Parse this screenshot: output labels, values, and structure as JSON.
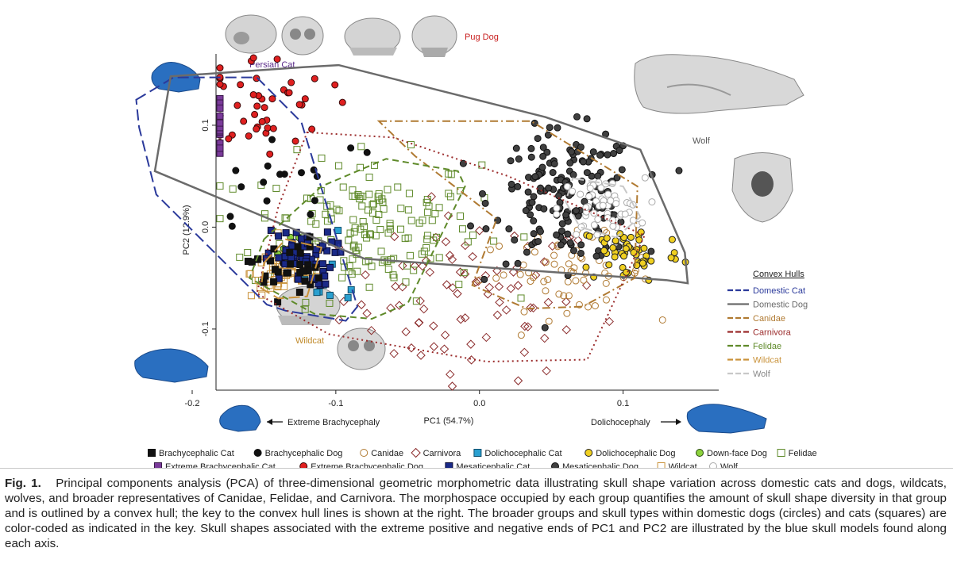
{
  "chart_data": {
    "type": "scatter",
    "xlabel": "PC1 (54.7%)",
    "ylabel": "PC2 (12.9%)",
    "xlim": [
      -0.2,
      0.15
    ],
    "ylim": [
      -0.16,
      0.17
    ],
    "x_ticks": [
      -0.2,
      -0.1,
      0.0,
      0.1
    ],
    "x_tick_labels": [
      "-0.2",
      "-0.1",
      "0.0",
      "0.1"
    ],
    "y_ticks": [
      -0.1,
      0.0,
      0.1
    ],
    "y_tick_labels": [
      "-0.1",
      "0.0",
      "0.1"
    ],
    "grid": false,
    "axis_annotations": {
      "left": "Extreme Brachycephaly",
      "right": "Dolichocephaly"
    },
    "skull_labels": {
      "persian_cat": "Persian Cat",
      "pug_dog": "Pug Dog",
      "wolf": "Wolf",
      "wildcat": "Wildcat"
    },
    "hull_legend_title": "Convex Hulls",
    "hulls": [
      {
        "name": "Domestic Cat",
        "color": "#2b3a9b",
        "dash": "long-dash",
        "points": [
          [
            -0.239,
            0.125
          ],
          [
            -0.213,
            0.147
          ],
          [
            -0.155,
            0.147
          ],
          [
            -0.124,
            0.103
          ],
          [
            -0.085,
            -0.078
          ],
          [
            -0.093,
            -0.092
          ],
          [
            -0.135,
            -0.082
          ],
          [
            -0.148,
            -0.076
          ],
          [
            -0.225,
            0.032
          ],
          [
            -0.237,
            0.098
          ]
        ]
      },
      {
        "name": "Domestic Dog",
        "color": "#6b6b6b",
        "dash": "solid",
        "points": [
          [
            -0.215,
            0.148
          ],
          [
            -0.123,
            0.157
          ],
          [
            -0.098,
            0.159
          ],
          [
            0.046,
            0.108
          ],
          [
            0.112,
            0.076
          ],
          [
            0.143,
            -0.025
          ],
          [
            0.145,
            -0.055
          ],
          [
            0.13,
            -0.052
          ],
          [
            -0.08,
            -0.031
          ],
          [
            -0.226,
            0.055
          ]
        ]
      },
      {
        "name": "Canidae",
        "color": "#b07a32",
        "dash": "dash-dot",
        "points": [
          [
            -0.07,
            0.104
          ],
          [
            0.036,
            0.104
          ],
          [
            0.11,
            0.04
          ],
          [
            0.108,
            -0.05
          ],
          [
            0.072,
            -0.078
          ],
          [
            0.033,
            -0.08
          ],
          [
            -0.005,
            -0.057
          ],
          [
            0.012,
            0.008
          ],
          [
            -0.045,
            0.07
          ]
        ]
      },
      {
        "name": "Carnivora",
        "color": "#9b2b2b",
        "dash": "dotted",
        "points": [
          [
            -0.12,
            0.093
          ],
          [
            -0.06,
            0.088
          ],
          [
            0.02,
            0.05
          ],
          [
            0.115,
            -0.008
          ],
          [
            0.075,
            -0.13
          ],
          [
            0.005,
            -0.132
          ],
          [
            -0.105,
            -0.105
          ],
          [
            -0.155,
            -0.065
          ],
          [
            -0.14,
            0.02
          ]
        ]
      },
      {
        "name": "Felidae",
        "color": "#5f8a2a",
        "dash": "dashed",
        "points": [
          [
            -0.15,
            -0.012
          ],
          [
            -0.11,
            0.04
          ],
          [
            -0.065,
            0.067
          ],
          [
            -0.015,
            0.055
          ],
          [
            -0.01,
            0.04
          ],
          [
            -0.05,
            -0.075
          ],
          [
            -0.075,
            -0.09
          ],
          [
            -0.115,
            -0.085
          ],
          [
            -0.16,
            -0.05
          ]
        ]
      },
      {
        "name": "Wildcat",
        "color": "#c9923a",
        "dash": "long-dash",
        "points": [
          [
            -0.15,
            -0.035
          ],
          [
            -0.135,
            -0.012
          ],
          [
            -0.11,
            -0.02
          ],
          [
            -0.12,
            -0.068
          ],
          [
            -0.14,
            -0.07
          ],
          [
            -0.152,
            -0.06
          ]
        ]
      },
      {
        "name": "Wolf",
        "color": "#c8c8c8",
        "dash": "long-dash",
        "points": [
          [
            0.065,
            0.048
          ],
          [
            0.1,
            0.04
          ],
          [
            0.112,
            0.01
          ],
          [
            0.095,
            -0.01
          ],
          [
            0.07,
            0.0
          ],
          [
            0.06,
            0.025
          ]
        ]
      }
    ],
    "groups": [
      {
        "name": "Brachycephalic Cat",
        "marker": "square",
        "fill": "#111111",
        "stroke": "#111111",
        "region": {
          "cx": -0.135,
          "cy": -0.04,
          "sx": 0.012,
          "sy": 0.015
        },
        "n": 30
      },
      {
        "name": "Brachycephalic Dog",
        "marker": "circle",
        "fill": "#111111",
        "stroke": "#111111",
        "region": {
          "cx": -0.13,
          "cy": 0.05,
          "sx": 0.035,
          "sy": 0.03
        },
        "n": 18
      },
      {
        "name": "Canidae",
        "marker": "circle-open",
        "fill": "none",
        "stroke": "#b07a32",
        "region": {
          "cx": 0.06,
          "cy": -0.045,
          "sx": 0.03,
          "sy": 0.018
        },
        "n": 60
      },
      {
        "name": "Carnivora",
        "marker": "diamond-open",
        "fill": "none",
        "stroke": "#8a2a2a",
        "region": {
          "cx": -0.005,
          "cy": -0.07,
          "sx": 0.045,
          "sy": 0.04
        },
        "n": 85
      },
      {
        "name": "Dolichocephalic Cat",
        "marker": "square",
        "fill": "#2aa0d0",
        "stroke": "#0d4d6b",
        "region": {
          "cx": -0.11,
          "cy": -0.05,
          "sx": 0.018,
          "sy": 0.02
        },
        "n": 10
      },
      {
        "name": "Dolichocephalic Dog",
        "marker": "circle",
        "fill": "#f0d020",
        "stroke": "#222",
        "region": {
          "cx": 0.105,
          "cy": -0.025,
          "sx": 0.018,
          "sy": 0.015
        },
        "n": 55
      },
      {
        "name": "Down-face Dog",
        "marker": "circle",
        "fill": "#8cd23c",
        "stroke": "#2a4a10",
        "region": {
          "cx": -0.13,
          "cy": -0.02,
          "sx": 0.01,
          "sy": 0.01
        },
        "n": 6
      },
      {
        "name": "Felidae",
        "marker": "square-open",
        "fill": "none",
        "stroke": "#5f8a2a",
        "region": {
          "cx": -0.08,
          "cy": 0.0,
          "sx": 0.04,
          "sy": 0.035
        },
        "n": 170
      },
      {
        "name": "Extreme Brachycephalic Cat",
        "marker": "square",
        "fill": "#7a3a9a",
        "stroke": "#3a1a4a",
        "region": {
          "cx": -0.22,
          "cy": 0.1,
          "sx": 0.012,
          "sy": 0.02
        },
        "n": 16
      },
      {
        "name": "Extreme Brachycephalic Dog",
        "marker": "circle",
        "fill": "#e02020",
        "stroke": "#3a0a0a",
        "region": {
          "cx": -0.155,
          "cy": 0.12,
          "sx": 0.025,
          "sy": 0.025
        },
        "n": 50
      },
      {
        "name": "Mesaticephalic Cat",
        "marker": "square",
        "fill": "#1a2a88",
        "stroke": "#0a0a33",
        "region": {
          "cx": -0.125,
          "cy": -0.03,
          "sx": 0.012,
          "sy": 0.014
        },
        "n": 55
      },
      {
        "name": "Mesaticephalic Dog",
        "marker": "circle",
        "fill": "#404040",
        "stroke": "#111",
        "region": {
          "cx": 0.06,
          "cy": 0.03,
          "sx": 0.025,
          "sy": 0.032
        },
        "n": 170
      },
      {
        "name": "Wildcat",
        "marker": "square-open",
        "fill": "none",
        "stroke": "#c9923a",
        "region": {
          "cx": -0.135,
          "cy": -0.045,
          "sx": 0.012,
          "sy": 0.012
        },
        "n": 60
      },
      {
        "name": "Wolf",
        "marker": "circle-open",
        "fill": "#ffffff",
        "stroke": "#aaaaaa",
        "region": {
          "cx": 0.085,
          "cy": 0.018,
          "sx": 0.015,
          "sy": 0.015
        },
        "n": 55
      }
    ]
  },
  "caption": {
    "fig_label": "Fig. 1.",
    "text": "Principal components analysis (PCA) of three-dimensional geometric morphometric data illustrating skull shape variation across domestic cats and dogs, wildcats, wolves, and broader representatives of Canidae, Felidae, and Carnivora. The morphospace occupied by each group quantifies the amount of skull shape diversity in that group and is outlined by a convex hull; the key to the convex hull lines is shown at the right. The broader groups and skull types within domestic dogs (circles) and cats (squares) are color-coded as indicated in the key. Skull shapes associated with the extreme positive and negative ends of PC1 and PC2 are illustrated by the blue skull models found along each axis."
  }
}
